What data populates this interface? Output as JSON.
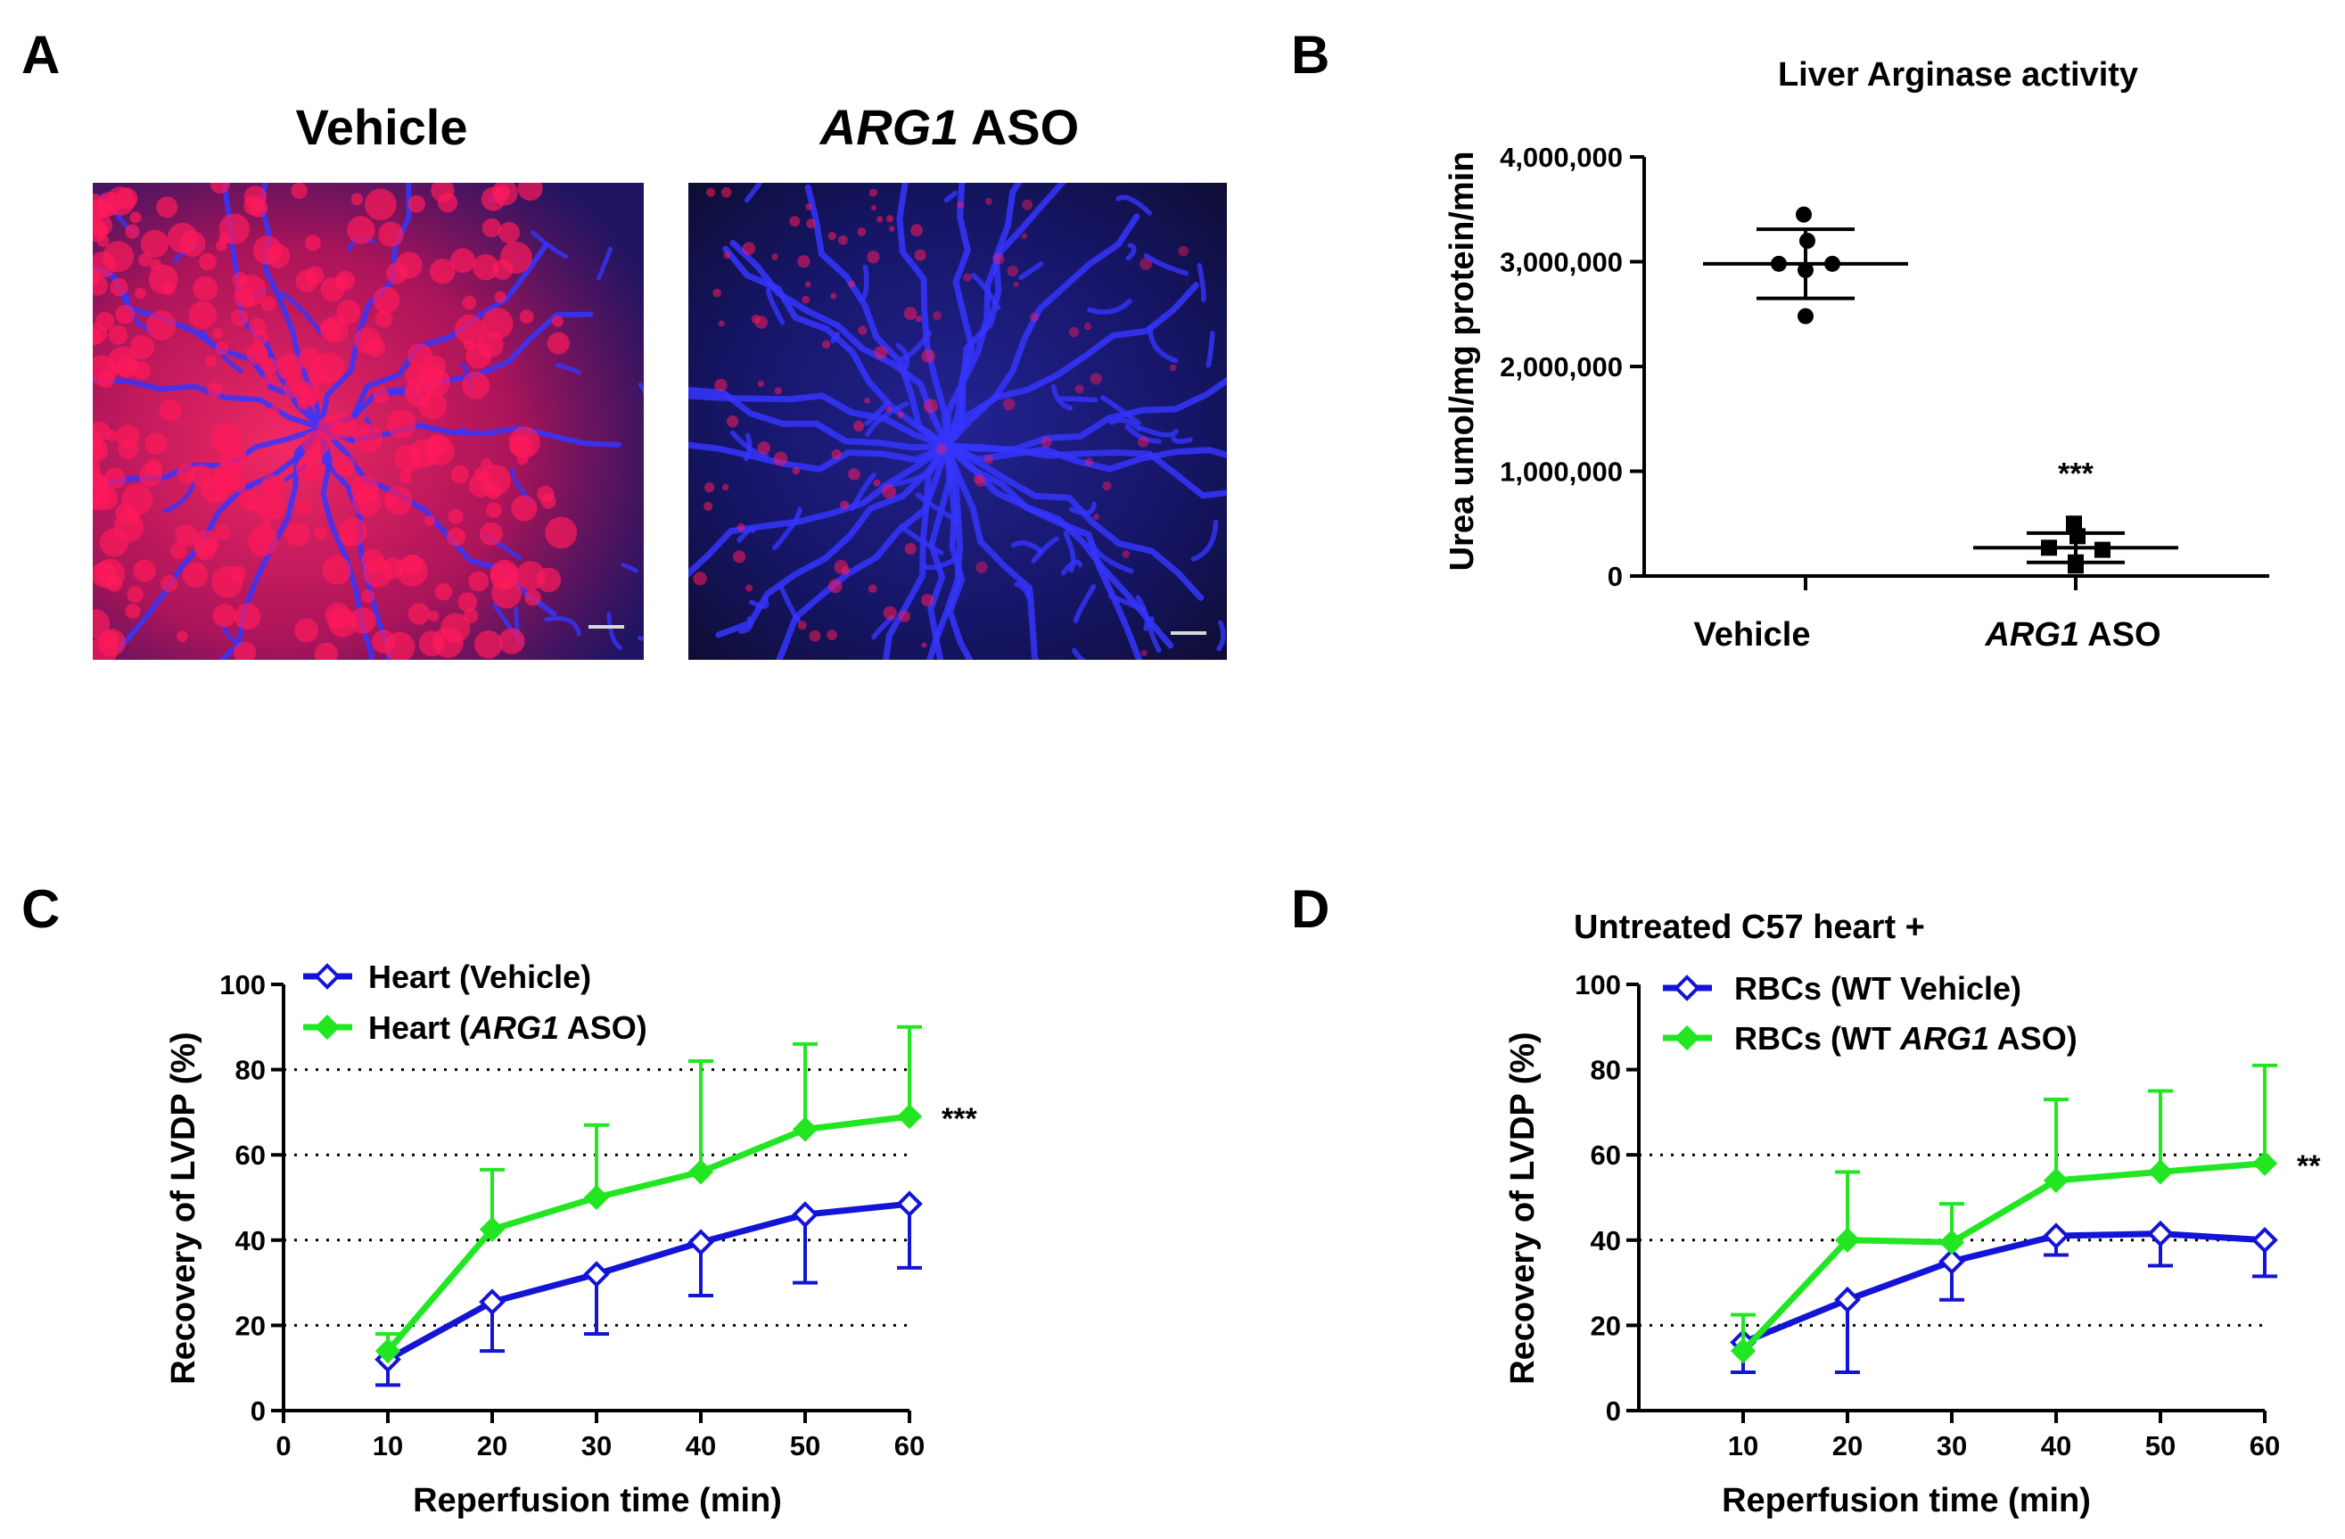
{
  "panels": {
    "a": {
      "label": "A",
      "image_titles": [
        "Vehicle",
        "ARG1 ASO"
      ]
    },
    "b": {
      "label": "B"
    },
    "c": {
      "label": "C"
    },
    "d": {
      "label": "D"
    }
  },
  "image_legend": {
    "vehicle_title": "Vehicle",
    "aso_gene": "ARG1",
    "aso_suffix": " ASO",
    "colors": {
      "stain_red": "#ff1a5a",
      "stain_blue": "#3535ff",
      "background": "#0b0a1c",
      "scale_bar": "#d8d8d8"
    }
  },
  "colors": {
    "vehicle": "#1414d6",
    "aso": "#22e622",
    "axis": "#000000"
  },
  "chart_data": [
    {
      "id": "B",
      "type": "scatter",
      "title": "Liver Arginase activity",
      "xlabel": "",
      "ylabel": "Urea umol/mg protein/min",
      "categories": [
        "Vehicle",
        "ARG1 ASO"
      ],
      "category_display": [
        {
          "italic": "",
          "plain": "Vehicle"
        },
        {
          "italic": "ARG1",
          "plain": " ASO"
        }
      ],
      "ylim": [
        0,
        4000000
      ],
      "yticks": [
        0,
        1000000,
        2000000,
        3000000,
        4000000
      ],
      "ytick_labels": [
        "0",
        "1,000,000",
        "2,000,000",
        "3,000,000",
        "4,000,000"
      ],
      "series": [
        {
          "name": "Vehicle",
          "marker": "circle",
          "points": [
            3450000,
            3200000,
            2980000,
            2980000,
            2920000,
            2480000
          ],
          "mean": 2980000,
          "sd": 330000
        },
        {
          "name": "ARG1 ASO",
          "marker": "square",
          "points": [
            500000,
            380000,
            270000,
            250000,
            130000,
            100000
          ],
          "mean": 270000,
          "sd": 140000
        }
      ],
      "annotations": [
        {
          "text": "***",
          "category": "ARG1 ASO",
          "y": 1000000
        }
      ]
    },
    {
      "id": "C",
      "type": "line",
      "title": "",
      "xlabel": "Reperfusion time (min)",
      "ylabel": "Recovery of LVDP (%)",
      "xlim": [
        0,
        60
      ],
      "ylim": [
        0,
        100
      ],
      "xticks": [
        0,
        10,
        20,
        30,
        40,
        50,
        60
      ],
      "yticks": [
        0,
        20,
        40,
        60,
        80,
        100
      ],
      "gridlines_y": [
        20,
        40,
        60,
        80
      ],
      "x": [
        10,
        20,
        30,
        40,
        50,
        60
      ],
      "series": [
        {
          "name": "Heart (Vehicle)",
          "name_display": {
            "before": "Heart (Vehicle)",
            "italic": "",
            "after": ""
          },
          "marker": "open-diamond",
          "values": [
            12,
            25.5,
            32,
            39.5,
            46,
            48.5
          ],
          "error_lower": [
            6,
            11.5,
            14,
            12.5,
            16,
            15
          ]
        },
        {
          "name": "Heart (ARG1 ASO)",
          "name_display": {
            "before": "Heart (",
            "italic": "ARG1",
            "after": " ASO)"
          },
          "marker": "filled-diamond",
          "values": [
            14,
            42.5,
            50,
            56,
            66,
            69
          ],
          "error_upper": [
            4,
            14,
            17,
            26,
            20,
            21
          ]
        }
      ],
      "annotations": [
        {
          "text": "***",
          "x": 60,
          "y": 69
        }
      ]
    },
    {
      "id": "D",
      "type": "line",
      "title": "Untreated C57 heart +",
      "xlabel": "Reperfusion time (min)",
      "ylabel": "Recovery of LVDP (%)",
      "xlim": [
        0,
        60
      ],
      "ylim": [
        0,
        100
      ],
      "xticks": [
        10,
        20,
        30,
        40,
        50,
        60
      ],
      "yticks": [
        0,
        20,
        40,
        60,
        80,
        100
      ],
      "gridlines_y": [
        20,
        40,
        60
      ],
      "x": [
        10,
        20,
        30,
        40,
        50,
        60
      ],
      "series": [
        {
          "name": "RBCs (WT Vehicle)",
          "name_display": {
            "before": "RBCs (WT Vehicle)",
            "italic": "",
            "after": ""
          },
          "marker": "open-diamond",
          "values": [
            16,
            26,
            35,
            41,
            41.5,
            40
          ],
          "error_lower": [
            7,
            17,
            9,
            4.5,
            7.5,
            8.5
          ]
        },
        {
          "name": "RBCs (WT ARG1 ASO)",
          "name_display": {
            "before": "RBCs (WT ",
            "italic": "ARG1",
            "after": " ASO)"
          },
          "marker": "filled-diamond",
          "values": [
            14,
            40,
            39.5,
            54,
            56,
            58
          ],
          "error_upper": [
            8.5,
            16,
            9,
            19,
            19,
            23
          ]
        }
      ],
      "annotations": [
        {
          "text": "**",
          "x": 60,
          "y": 58
        }
      ]
    }
  ]
}
